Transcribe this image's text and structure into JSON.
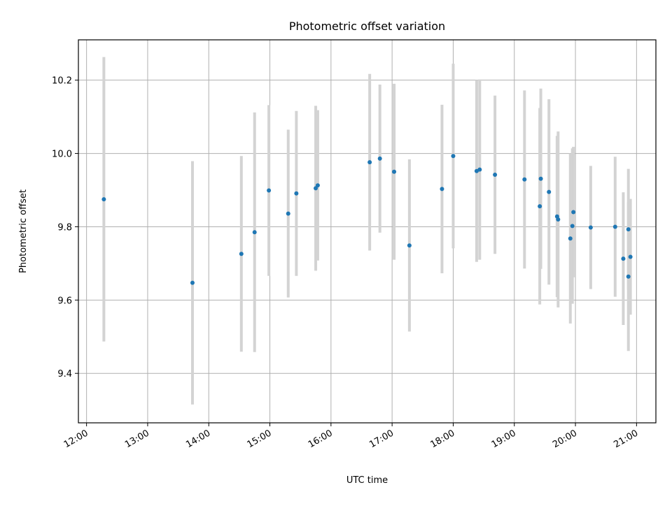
{
  "chart_data": {
    "type": "scatter",
    "title": "Photometric offset variation",
    "xlabel": "UTC time",
    "ylabel": "Photometric offset",
    "x_ticks": [
      "12:00",
      "13:00",
      "14:00",
      "15:00",
      "16:00",
      "17:00",
      "18:00",
      "19:00",
      "20:00",
      "21:00"
    ],
    "y_ticks": [
      "9.4",
      "9.6",
      "9.8",
      "10.0",
      "10.2"
    ],
    "xlim": [
      "11:52",
      "21:19"
    ],
    "ylim": [
      9.265,
      10.31
    ],
    "grid": true,
    "marker_color": "#1f77b4",
    "errorbar_color": "#d3d3d3",
    "series": [
      {
        "points": [
          {
            "x": "12:17",
            "y": 9.875,
            "err": 0.388
          },
          {
            "x": "13:44",
            "y": 9.647,
            "err": 0.332
          },
          {
            "x": "14:32",
            "y": 9.726,
            "err": 0.267
          },
          {
            "x": "14:45",
            "y": 9.785,
            "err": 0.327
          },
          {
            "x": "14:59",
            "y": 9.899,
            "err": 0.233
          },
          {
            "x": "15:18",
            "y": 9.836,
            "err": 0.229
          },
          {
            "x": "15:26",
            "y": 9.891,
            "err": 0.225
          },
          {
            "x": "15:45",
            "y": 9.905,
            "err": 0.225
          },
          {
            "x": "15:47",
            "y": 9.913,
            "err": 0.205
          },
          {
            "x": "16:38",
            "y": 9.976,
            "err": 0.241
          },
          {
            "x": "16:48",
            "y": 9.986,
            "err": 0.202
          },
          {
            "x": "17:02",
            "y": 9.95,
            "err": 0.24
          },
          {
            "x": "17:17",
            "y": 9.749,
            "err": 0.235
          },
          {
            "x": "17:49",
            "y": 9.903,
            "err": 0.23
          },
          {
            "x": "18:00",
            "y": 9.993,
            "err": 0.252
          },
          {
            "x": "18:23",
            "y": 9.952,
            "err": 0.248
          },
          {
            "x": "18:26",
            "y": 9.956,
            "err": 0.246
          },
          {
            "x": "18:41",
            "y": 9.942,
            "err": 0.216
          },
          {
            "x": "19:10",
            "y": 9.929,
            "err": 0.243
          },
          {
            "x": "19:25",
            "y": 9.856,
            "err": 0.268
          },
          {
            "x": "19:26",
            "y": 9.931,
            "err": 0.246
          },
          {
            "x": "19:34",
            "y": 9.895,
            "err": 0.253
          },
          {
            "x": "19:42",
            "y": 9.828,
            "err": 0.22
          },
          {
            "x": "19:43",
            "y": 9.82,
            "err": 0.24
          },
          {
            "x": "19:55",
            "y": 9.768,
            "err": 0.232
          },
          {
            "x": "19:57",
            "y": 9.802,
            "err": 0.212
          },
          {
            "x": "19:58",
            "y": 9.84,
            "err": 0.178
          },
          {
            "x": "20:15",
            "y": 9.798,
            "err": 0.168
          },
          {
            "x": "20:39",
            "y": 9.8,
            "err": 0.191
          },
          {
            "x": "20:47",
            "y": 9.713,
            "err": 0.181
          },
          {
            "x": "20:52",
            "y": 9.793,
            "err": 0.165
          },
          {
            "x": "20:52",
            "y": 9.664,
            "err": 0.203
          },
          {
            "x": "20:54",
            "y": 9.718,
            "err": 0.158
          }
        ]
      }
    ]
  }
}
